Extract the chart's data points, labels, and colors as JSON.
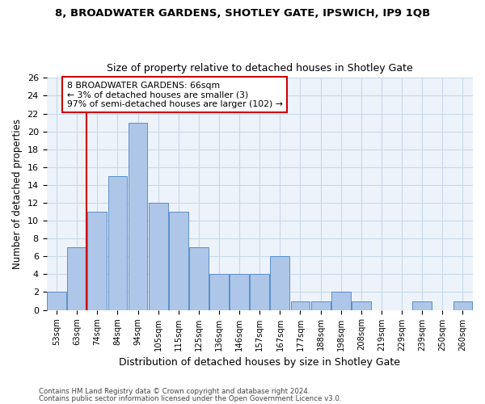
{
  "title1": "8, BROADWATER GARDENS, SHOTLEY GATE, IPSWICH, IP9 1QB",
  "title2": "Size of property relative to detached houses in Shotley Gate",
  "xlabel": "Distribution of detached houses by size in Shotley Gate",
  "ylabel": "Number of detached properties",
  "bar_labels": [
    "53sqm",
    "63sqm",
    "74sqm",
    "84sqm",
    "94sqm",
    "105sqm",
    "115sqm",
    "125sqm",
    "136sqm",
    "146sqm",
    "157sqm",
    "167sqm",
    "177sqm",
    "188sqm",
    "198sqm",
    "208sqm",
    "219sqm",
    "229sqm",
    "239sqm",
    "250sqm",
    "260sqm"
  ],
  "bar_values": [
    2,
    7,
    11,
    15,
    21,
    12,
    11,
    7,
    4,
    4,
    4,
    6,
    1,
    1,
    2,
    1,
    0,
    0,
    1,
    0,
    1
  ],
  "bar_color": "#aec6e8",
  "bar_edge_color": "#5b8fc9",
  "subject_line_color": "#cc0000",
  "annotation_text": "8 BROADWATER GARDENS: 66sqm\n← 3% of detached houses are smaller (3)\n97% of semi-detached houses are larger (102) →",
  "annotation_box_color": "#ffffff",
  "annotation_box_edge": "#cc0000",
  "ylim": [
    0,
    26
  ],
  "yticks": [
    0,
    2,
    4,
    6,
    8,
    10,
    12,
    14,
    16,
    18,
    20,
    22,
    24,
    26
  ],
  "grid_color": "#c8d8ea",
  "bg_color": "#edf3fa",
  "footnote1": "Contains HM Land Registry data © Crown copyright and database right 2024.",
  "footnote2": "Contains public sector information licensed under the Open Government Licence v3.0."
}
